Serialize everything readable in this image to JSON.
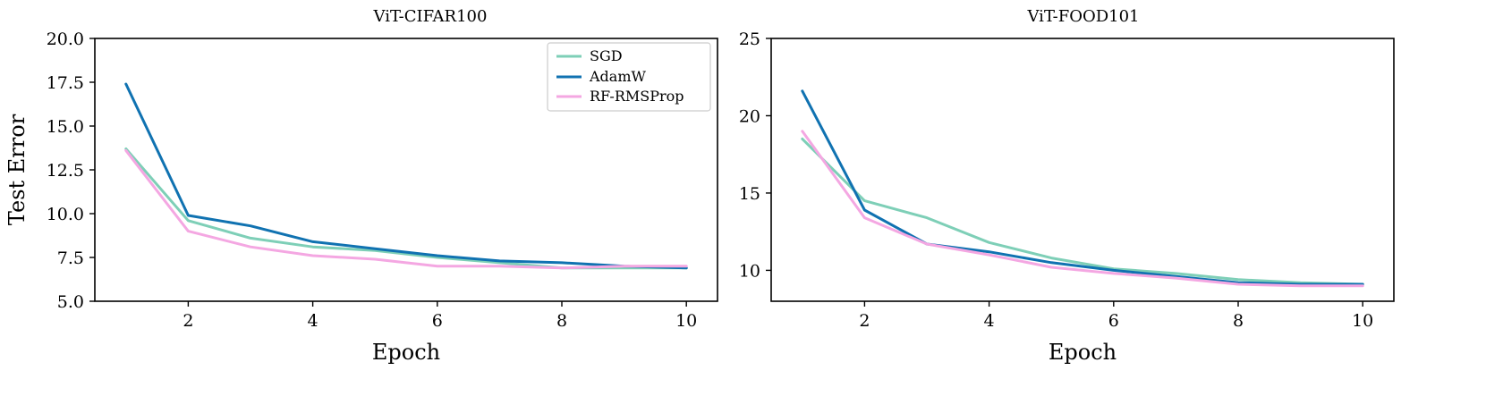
{
  "colors": {
    "SGD": "#7ecfb7",
    "AdamW": "#1072b1",
    "RF-RMSProp": "#f4a7e2"
  },
  "chart_data": [
    {
      "type": "line",
      "title": "ViT-CIFAR100",
      "xlabel": "Epoch",
      "ylabel": "Test Error",
      "xlim": [
        0.5,
        10.5
      ],
      "ylim": [
        5.0,
        20.0
      ],
      "xticks": [
        2,
        4,
        6,
        8,
        10
      ],
      "yticks": [
        5.0,
        7.5,
        10.0,
        12.5,
        15.0,
        17.5,
        20.0
      ],
      "ytick_labels": [
        "5.0",
        "7.5",
        "10.0",
        "12.5",
        "15.0",
        "17.5",
        "20.0"
      ],
      "legend": "top-right",
      "x": [
        1,
        2,
        3,
        4,
        5,
        6,
        7,
        8,
        9,
        10
      ],
      "series": [
        {
          "name": "SGD",
          "values": [
            13.7,
            9.6,
            8.6,
            8.1,
            7.9,
            7.5,
            7.2,
            6.9,
            6.9,
            6.9
          ]
        },
        {
          "name": "AdamW",
          "values": [
            17.4,
            9.9,
            9.3,
            8.4,
            8.0,
            7.6,
            7.3,
            7.2,
            7.0,
            6.9
          ]
        },
        {
          "name": "RF-RMSProp",
          "values": [
            13.6,
            9.0,
            8.1,
            7.6,
            7.4,
            7.0,
            7.0,
            6.9,
            7.0,
            7.0
          ]
        }
      ]
    },
    {
      "type": "line",
      "title": "ViT-FOOD101",
      "xlabel": "Epoch",
      "ylabel": "",
      "xlim": [
        0.5,
        10.5
      ],
      "ylim": [
        8.0,
        25.0
      ],
      "xticks": [
        2,
        4,
        6,
        8,
        10
      ],
      "yticks": [
        10,
        15,
        20,
        25
      ],
      "ytick_labels": [
        "10",
        "15",
        "20",
        "25"
      ],
      "x": [
        1,
        2,
        3,
        4,
        5,
        6,
        7,
        8,
        9,
        10
      ],
      "series": [
        {
          "name": "SGD",
          "values": [
            18.5,
            14.5,
            13.4,
            11.8,
            10.8,
            10.1,
            9.8,
            9.4,
            9.2,
            9.1
          ]
        },
        {
          "name": "AdamW",
          "values": [
            21.6,
            13.9,
            11.7,
            11.2,
            10.5,
            10.0,
            9.6,
            9.2,
            9.1,
            9.1
          ]
        },
        {
          "name": "RF-RMSProp",
          "values": [
            19.0,
            13.4,
            11.7,
            11.0,
            10.2,
            9.8,
            9.5,
            9.1,
            9.0,
            9.0
          ]
        }
      ]
    }
  ]
}
